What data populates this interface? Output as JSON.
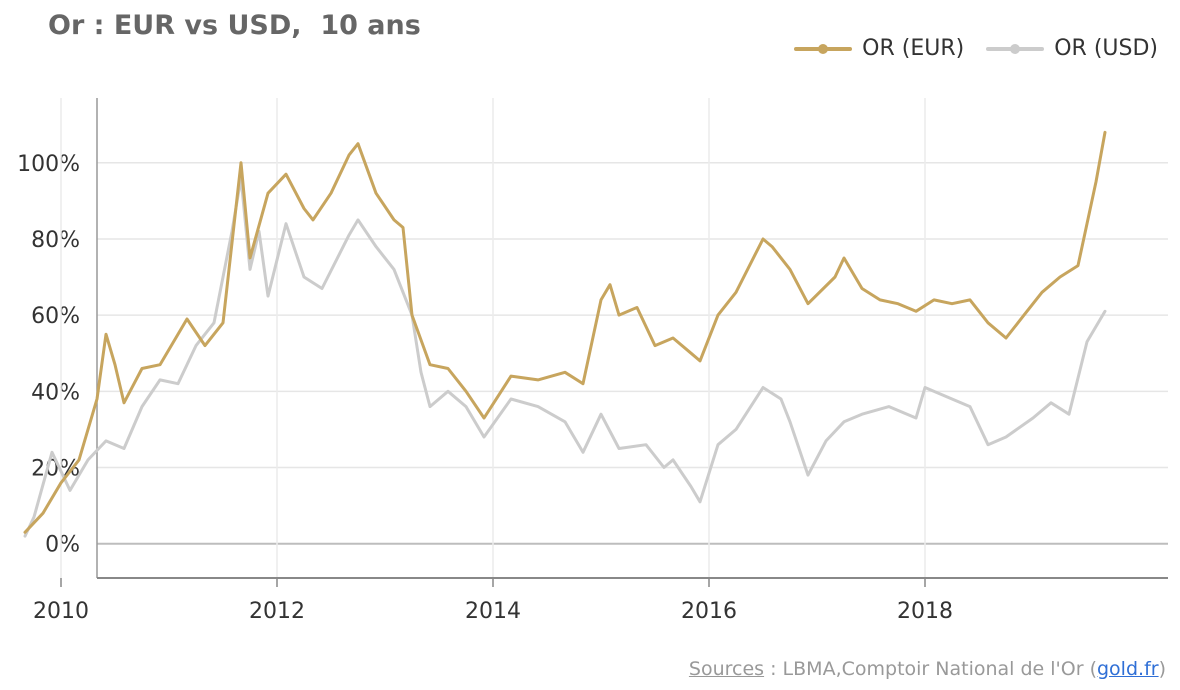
{
  "title": "Or : EUR vs USD,  10 ans",
  "legend": [
    {
      "label": "OR (EUR)",
      "color": "#c7a55e"
    },
    {
      "label": "OR (USD)",
      "color": "#cccccc"
    }
  ],
  "footer": {
    "sources_label": "Sources",
    "separator": " : LBMA,Comptoir National de l'Or (",
    "link_label": "gold.fr",
    "closing": ")"
  },
  "chart_data": {
    "type": "line",
    "x_axis": {
      "ticks": [
        "2010",
        "2012",
        "2014",
        "2016",
        "2018"
      ],
      "range": [
        "2009-09",
        "2019-09"
      ]
    },
    "y_axis": {
      "ticks": [
        "0%",
        "20%",
        "40%",
        "60%",
        "80%",
        "100%"
      ],
      "min": -9,
      "max": 117,
      "unit": "%"
    },
    "grid": true,
    "legend_position": "top-right",
    "series": [
      {
        "name": "OR (EUR)",
        "color": "#c7a55e",
        "points": [
          [
            "2009-09",
            3
          ],
          [
            "2009-11",
            8
          ],
          [
            "2010-01",
            16
          ],
          [
            "2010-03",
            22
          ],
          [
            "2010-05",
            38
          ],
          [
            "2010-06",
            55
          ],
          [
            "2010-07",
            47
          ],
          [
            "2010-08",
            37
          ],
          [
            "2010-10",
            46
          ],
          [
            "2010-12",
            47
          ],
          [
            "2011-02",
            55
          ],
          [
            "2011-03",
            59
          ],
          [
            "2011-05",
            52
          ],
          [
            "2011-07",
            58
          ],
          [
            "2011-09",
            100
          ],
          [
            "2011-10",
            75
          ],
          [
            "2011-12",
            92
          ],
          [
            "2012-02",
            97
          ],
          [
            "2012-04",
            88
          ],
          [
            "2012-05",
            85
          ],
          [
            "2012-07",
            92
          ],
          [
            "2012-09",
            102
          ],
          [
            "2012-10",
            105
          ],
          [
            "2012-12",
            92
          ],
          [
            "2013-02",
            85
          ],
          [
            "2013-03",
            83
          ],
          [
            "2013-04",
            60
          ],
          [
            "2013-06",
            47
          ],
          [
            "2013-08",
            46
          ],
          [
            "2013-10",
            40
          ],
          [
            "2013-12",
            33
          ],
          [
            "2014-03",
            44
          ],
          [
            "2014-06",
            43
          ],
          [
            "2014-09",
            45
          ],
          [
            "2014-11",
            42
          ],
          [
            "2015-01",
            64
          ],
          [
            "2015-02",
            68
          ],
          [
            "2015-03",
            60
          ],
          [
            "2015-05",
            62
          ],
          [
            "2015-07",
            52
          ],
          [
            "2015-09",
            54
          ],
          [
            "2015-11",
            50
          ],
          [
            "2015-12",
            48
          ],
          [
            "2016-02",
            60
          ],
          [
            "2016-04",
            66
          ],
          [
            "2016-07",
            80
          ],
          [
            "2016-08",
            78
          ],
          [
            "2016-10",
            72
          ],
          [
            "2016-12",
            63
          ],
          [
            "2017-03",
            70
          ],
          [
            "2017-04",
            75
          ],
          [
            "2017-06",
            67
          ],
          [
            "2017-08",
            64
          ],
          [
            "2017-10",
            63
          ],
          [
            "2017-12",
            61
          ],
          [
            "2018-02",
            64
          ],
          [
            "2018-04",
            63
          ],
          [
            "2018-06",
            64
          ],
          [
            "2018-08",
            58
          ],
          [
            "2018-10",
            54
          ],
          [
            "2018-12",
            60
          ],
          [
            "2019-02",
            66
          ],
          [
            "2019-04",
            70
          ],
          [
            "2019-06",
            73
          ],
          [
            "2019-08",
            95
          ],
          [
            "2019-09",
            108
          ]
        ]
      },
      {
        "name": "OR (USD)",
        "color": "#cccccc",
        "points": [
          [
            "2009-09",
            2
          ],
          [
            "2009-10",
            7
          ],
          [
            "2009-12",
            24
          ],
          [
            "2010-02",
            14
          ],
          [
            "2010-04",
            22
          ],
          [
            "2010-06",
            27
          ],
          [
            "2010-08",
            25
          ],
          [
            "2010-10",
            36
          ],
          [
            "2010-12",
            43
          ],
          [
            "2011-02",
            42
          ],
          [
            "2011-04",
            52
          ],
          [
            "2011-06",
            58
          ],
          [
            "2011-08",
            82
          ],
          [
            "2011-09",
            96
          ],
          [
            "2011-10",
            72
          ],
          [
            "2011-11",
            82
          ],
          [
            "2011-12",
            65
          ],
          [
            "2012-02",
            84
          ],
          [
            "2012-04",
            70
          ],
          [
            "2012-06",
            67
          ],
          [
            "2012-09",
            81
          ],
          [
            "2012-10",
            85
          ],
          [
            "2012-12",
            78
          ],
          [
            "2013-02",
            72
          ],
          [
            "2013-04",
            60
          ],
          [
            "2013-05",
            45
          ],
          [
            "2013-06",
            36
          ],
          [
            "2013-08",
            40
          ],
          [
            "2013-10",
            36
          ],
          [
            "2013-12",
            28
          ],
          [
            "2014-03",
            38
          ],
          [
            "2014-06",
            36
          ],
          [
            "2014-09",
            32
          ],
          [
            "2014-11",
            24
          ],
          [
            "2015-01",
            34
          ],
          [
            "2015-03",
            25
          ],
          [
            "2015-06",
            26
          ],
          [
            "2015-08",
            20
          ],
          [
            "2015-09",
            22
          ],
          [
            "2015-11",
            15
          ],
          [
            "2015-12",
            11
          ],
          [
            "2016-02",
            26
          ],
          [
            "2016-04",
            30
          ],
          [
            "2016-07",
            41
          ],
          [
            "2016-09",
            38
          ],
          [
            "2016-10",
            32
          ],
          [
            "2016-12",
            18
          ],
          [
            "2017-02",
            27
          ],
          [
            "2017-04",
            32
          ],
          [
            "2017-06",
            34
          ],
          [
            "2017-09",
            36
          ],
          [
            "2017-12",
            33
          ],
          [
            "2018-01",
            41
          ],
          [
            "2018-04",
            38
          ],
          [
            "2018-06",
            36
          ],
          [
            "2018-08",
            26
          ],
          [
            "2018-10",
            28
          ],
          [
            "2019-01",
            33
          ],
          [
            "2019-03",
            37
          ],
          [
            "2019-05",
            34
          ],
          [
            "2019-07",
            53
          ],
          [
            "2019-09",
            61
          ]
        ]
      }
    ]
  }
}
